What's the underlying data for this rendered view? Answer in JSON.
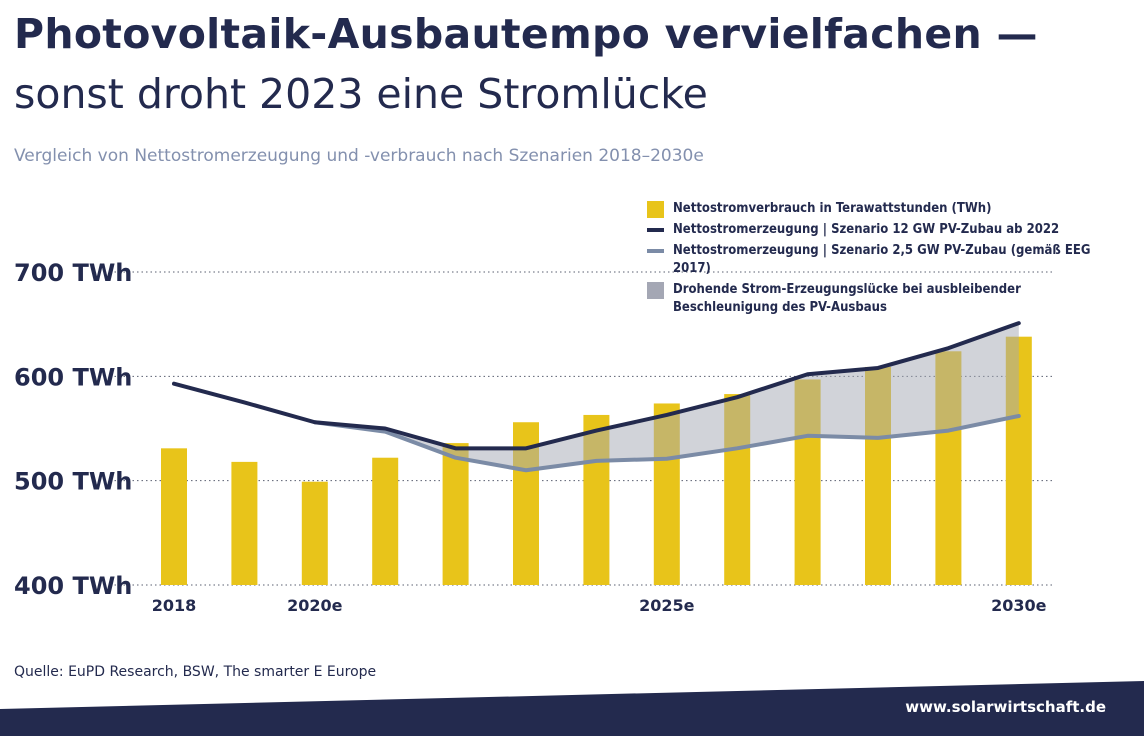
{
  "header": {
    "title_line1": "Photovoltaik-Ausbautempo vervielfachen —",
    "title_line2": "sonst droht 2023 eine Stromlücke",
    "subtitle": "Vergleich von Nettostromerzeugung und -verbrauch nach Szenarien 2018–2030e"
  },
  "legend": {
    "items": [
      {
        "label": "Nettostromverbrauch in Terawattstunden (TWh)",
        "color": "#e8c41a",
        "kind": "box"
      },
      {
        "label": "Nettostromerzeugung | Szenario 12 GW PV-Zubau ab 2022",
        "color": "#232a4e",
        "kind": "line"
      },
      {
        "label": "Nettostromerzeugung | Szenario 2,5 GW PV-Zubau (gemäß EEG 2017)",
        "color": "#7b8ba6",
        "kind": "line"
      },
      {
        "label": "Drohende Strom-Erzeugungslücke bei ausbleibender Beschleunigung des PV-Ausbaus",
        "color": "#a4a7b4",
        "kind": "box"
      }
    ]
  },
  "chart_data": {
    "type": "bar",
    "categories": [
      "2018",
      "2019",
      "2020e",
      "2021",
      "2022",
      "2023",
      "2024",
      "2025e",
      "2026",
      "2027",
      "2028",
      "2029",
      "2030e"
    ],
    "x_tick_labels": [
      "2018",
      "",
      "2020e",
      "",
      "",
      "",
      "",
      "2025e",
      "",
      "",
      "",
      "",
      "2030e"
    ],
    "series": [
      {
        "name": "Nettostromverbrauch in Terawattstunden (TWh)",
        "type": "bar",
        "color": "#e8c41a",
        "values": [
          531,
          518,
          499,
          522,
          536,
          556,
          563,
          574,
          583,
          597,
          609,
          624,
          638
        ]
      },
      {
        "name": "Nettostromerzeugung | Szenario 12 GW PV-Zubau ab 2022",
        "type": "line",
        "color": "#232a4e",
        "values": [
          593,
          575,
          556,
          550,
          531,
          531,
          548,
          563,
          580,
          602,
          608,
          627,
          651
        ]
      },
      {
        "name": "Nettostromerzeugung | Szenario 2,5 GW PV-Zubau (gemäß EEG 2017)",
        "type": "line",
        "color": "#7b8ba6",
        "values": [
          null,
          null,
          556,
          547,
          522,
          510,
          519,
          521,
          531,
          543,
          541,
          548,
          562
        ]
      }
    ],
    "gap_area": {
      "name": "Drohende Strom-Erzeugungslücke bei ausbleibender Beschleunigung des PV-Ausbaus",
      "color": "#a4a7b4",
      "opacity": 0.5
    },
    "y_ticks": [
      400,
      500,
      600,
      700
    ],
    "y_tick_labels": [
      "400 TWh",
      "500 TWh",
      "600 TWh",
      "700 TWh"
    ],
    "ylim": [
      400,
      700
    ],
    "grid": "dotted horizontal",
    "legend_position": "top-right"
  },
  "footer": {
    "source": "Quelle: EuPD Research, BSW, The smarter E Europe",
    "url": "www.solarwirtschaft.de",
    "band_color": "#232a4e"
  }
}
